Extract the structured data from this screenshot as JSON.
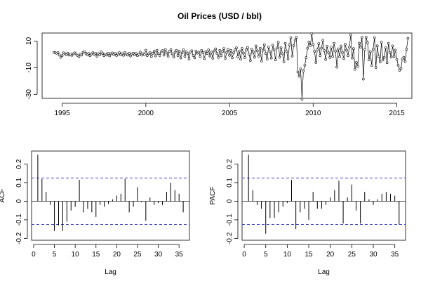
{
  "figure": {
    "title": "Oil Prices (USD / bbl)"
  },
  "chart_data": [
    {
      "id": "ts",
      "type": "line",
      "title": "Oil Prices (USD / bbl)",
      "xlabel": "",
      "ylabel": "",
      "xlim": [
        1993.8,
        2015.9
      ],
      "ylim": [
        -33,
        16
      ],
      "xticks": [
        1995,
        2000,
        2005,
        2010,
        2015
      ],
      "yticks": [
        10,
        -10,
        -30
      ],
      "markers": "open-circle",
      "grid": false,
      "series": [
        {
          "x0": 1994.5,
          "dx": 0.08333,
          "values": [
            1.5,
            1.2,
            0.8,
            1.3,
            -0.4,
            -2.2,
            -1.0,
            1.1,
            0.5,
            -0.3,
            0.9,
            -0.6,
            0.2,
            -0.7,
            0.4,
            1.1,
            0.3,
            -0.8,
            -1.6,
            0.2,
            -0.5,
            1.5,
            2.1,
            0.8,
            -0.4,
            0.6,
            -1.0,
            0.3,
            1.2,
            -0.2,
            0.7,
            -1.4,
            0.5,
            -0.3,
            1.8,
            0.6,
            -0.9,
            0.2,
            -0.5,
            0.8,
            -1.1,
            0.4,
            1.0,
            -0.2,
            0.6,
            -0.8,
            0.3,
            1.2,
            -0.3,
            0.5,
            -0.7,
            1.4,
            0.2,
            -0.5,
            0.8,
            -1.2,
            0.3,
            0.9,
            -0.4,
            0.6,
            -1.0,
            0.1,
            1.7,
            -0.6,
            0.4,
            -0.2,
            3.1,
            -0.9,
            0.5,
            1.3,
            -1.6,
            0.8,
            2.4,
            -1.2,
            3.0,
            0.5,
            -0.8,
            1.9,
            2.8,
            -0.6,
            3.5,
            1.0,
            -1.4,
            2.2,
            3.6,
            0.4,
            -2.1,
            1.6,
            3.0,
            -0.9,
            2.4,
            -2.8,
            1.1,
            3.4,
            -1.5,
            2.0,
            0.6,
            -3.4,
            1.8,
            2.7,
            -0.8,
            -2.6,
            2.4,
            0.9,
            1.6,
            -1.7,
            2.9,
            1.3,
            -3.2,
            2.1,
            0.6,
            3.3,
            -1.2,
            1.7,
            -2.9,
            2.6,
            4.1,
            0.8,
            -2.3,
            3.0,
            -1.0,
            2.2,
            4.3,
            -3.1,
            1.5,
            3.8,
            -0.7,
            2.9,
            -2.6,
            1.2,
            3.5,
            5.0,
            -1.9,
            2.5,
            -3.6,
            4.4,
            1.0,
            -2.5,
            3.3,
            5.2,
            0.2,
            -4.6,
            3.9,
            1.8,
            -2.2,
            6.3,
            2.7,
            -1.4,
            4.6,
            -5.0,
            3.1,
            7.2,
            0.6,
            -3.5,
            5.5,
            1.9,
            -2.8,
            6.9,
            3.4,
            -4.1,
            4.8,
            9.1,
            -2.2,
            5.0,
            0.5,
            -5.6,
            8.2,
            2.3,
            -3.4,
            7.1,
            12.4,
            -1.3,
            6.5,
            10.6,
            12.8,
            -13.2,
            -16.4,
            -10.8,
            -33.5,
            -12.6,
            -8.1,
            -2.5,
            4.6,
            9.2,
            6.5,
            15.6,
            7.5,
            2.2,
            -6.1,
            3.4,
            8.1,
            -0.9,
            4.7,
            10.6,
            2.8,
            -3.9,
            6.1,
            1.3,
            -2.4,
            5.4,
            -1.6,
            8.3,
            2.5,
            -9.6,
            4.1,
            -1.8,
            6.2,
            1.4,
            -3.2,
            7.6,
            3.1,
            -1.0,
            5.5,
            14.6,
            -2.8,
            4.3,
            -11.2,
            -6.1,
            -9.1,
            8.4,
            5.3,
            12.8,
            -18.6,
            3.6,
            12.9,
            8.7,
            -4.0,
            2.1,
            -8.5,
            3.8,
            12.5,
            -9.8,
            6.4,
            -1.5,
            -5.7,
            9.1,
            -4.3,
            -2.3,
            4.9,
            -6.3,
            8.2,
            1.3,
            -2.1,
            6.3,
            -1.6,
            3.2,
            -3.9,
            -8.1,
            -11.9,
            -10.5,
            -3.3,
            -2.2,
            -5.4,
            3.9,
            12.0
          ]
        }
      ]
    },
    {
      "id": "acf",
      "type": "bar",
      "title": "",
      "xlabel": "Lag",
      "ylabel": "ACF",
      "xlim": [
        -0.5,
        37.5
      ],
      "ylim": [
        -0.21,
        0.27
      ],
      "xticks": [
        0,
        5,
        10,
        15,
        20,
        25,
        30,
        35
      ],
      "yticks": [
        -0.2,
        -0.1,
        0.0,
        0.1,
        0.2
      ],
      "confidence_band": [
        0.125,
        -0.125
      ],
      "band_color": "#4040d0",
      "lags": [
        1,
        2,
        3,
        4,
        5,
        6,
        7,
        8,
        9,
        10,
        11,
        12,
        13,
        14,
        15,
        16,
        17,
        18,
        19,
        20,
        21,
        22,
        23,
        24,
        25,
        26,
        27,
        28,
        29,
        30,
        31,
        32,
        33,
        34,
        35,
        36
      ],
      "values": [
        0.25,
        0.12,
        0.05,
        -0.02,
        -0.16,
        -0.13,
        -0.16,
        -0.11,
        -0.05,
        -0.03,
        0.115,
        -0.06,
        -0.04,
        -0.06,
        -0.085,
        -0.02,
        -0.03,
        -0.015,
        0.01,
        0.03,
        0.04,
        0.12,
        -0.06,
        -0.03,
        0.075,
        -0.005,
        -0.105,
        0.02,
        -0.02,
        -0.01,
        -0.02,
        0.05,
        0.1,
        0.06,
        0.04,
        -0.06
      ]
    },
    {
      "id": "pacf",
      "type": "bar",
      "title": "",
      "xlabel": "Lag",
      "ylabel": "PACF",
      "xlim": [
        -0.5,
        37.5
      ],
      "ylim": [
        -0.21,
        0.27
      ],
      "xticks": [
        0,
        5,
        10,
        15,
        20,
        25,
        30,
        35
      ],
      "yticks": [
        -0.2,
        -0.1,
        0.0,
        0.1,
        0.2
      ],
      "confidence_band": [
        0.125,
        -0.125
      ],
      "band_color": "#4040d0",
      "lags": [
        1,
        2,
        3,
        4,
        5,
        6,
        7,
        8,
        9,
        10,
        11,
        12,
        13,
        14,
        15,
        16,
        17,
        18,
        19,
        20,
        21,
        22,
        23,
        24,
        25,
        26,
        27,
        28,
        29,
        30,
        31,
        32,
        33,
        34,
        35,
        36
      ],
      "values": [
        0.25,
        0.06,
        -0.02,
        -0.04,
        -0.175,
        -0.09,
        -0.09,
        -0.06,
        -0.03,
        -0.01,
        0.115,
        -0.15,
        -0.06,
        -0.04,
        -0.1,
        0.05,
        -0.04,
        -0.04,
        -0.02,
        0.02,
        0.06,
        0.11,
        -0.12,
        0.02,
        0.09,
        -0.05,
        -0.12,
        0.05,
        0.01,
        -0.02,
        0.01,
        0.04,
        0.05,
        0.04,
        0.03,
        -0.125
      ]
    }
  ]
}
